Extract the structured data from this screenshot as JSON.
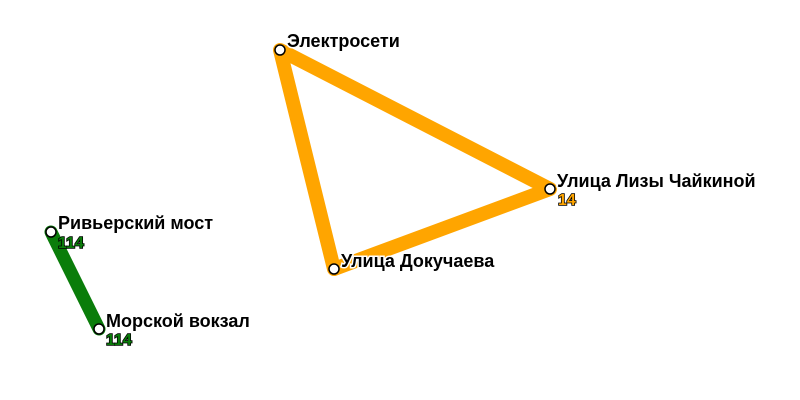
{
  "colors": {
    "orange_route": "#FFA500",
    "green_route": "#0A7D0A",
    "stop_fill": "#ffffff",
    "stop_stroke": "#000000"
  },
  "stops": {
    "elektroseti": {
      "name": "Электросети"
    },
    "lizy_chaikinoy": {
      "name": "Улица Лизы Чайкиной",
      "route": "14"
    },
    "dokuchaeva": {
      "name": "Улица Докучаева"
    },
    "riverskiy_most": {
      "name": "Ривьерский мост",
      "route": "114"
    },
    "morskoy_vokzal": {
      "name": "Морской вокзал",
      "route": "114"
    }
  }
}
